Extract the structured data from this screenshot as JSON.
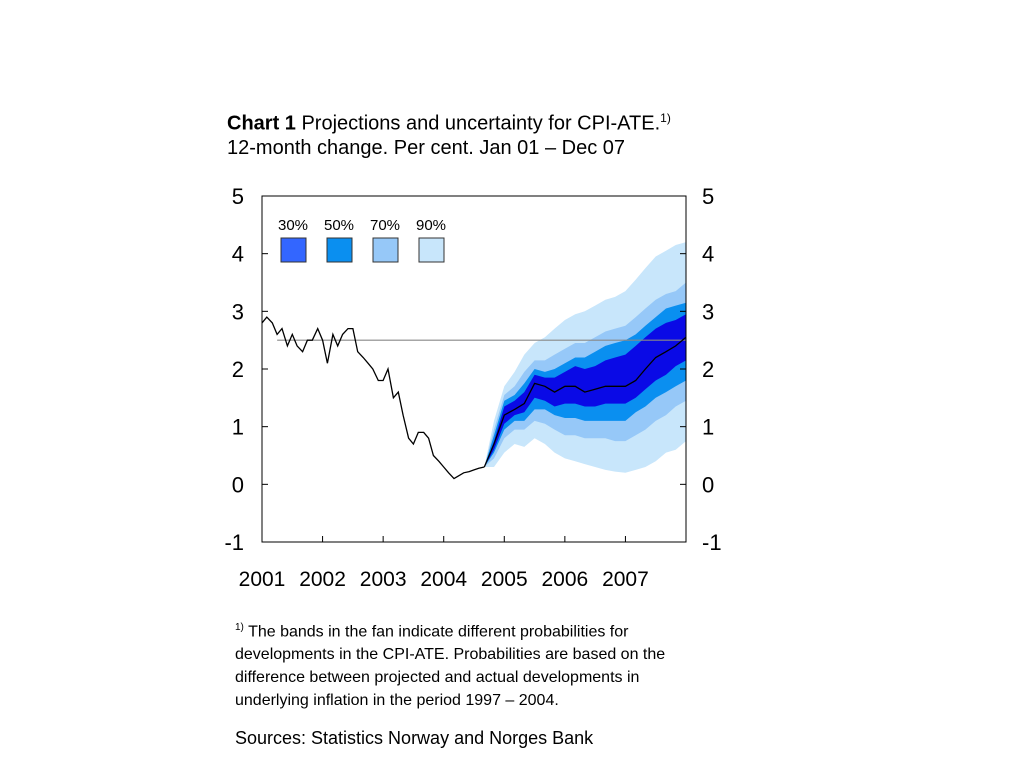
{
  "title": {
    "bold": "Chart 1",
    "text": "Projections and uncertainty for CPI-ATE.",
    "sup": "1)",
    "subtitle": "12-month change. Per cent. Jan 01 – Dec 07"
  },
  "footnote": {
    "sup": "1)",
    "text": "The bands in the fan indicate different probabilities for developments in the CPI-ATE. Probabilities are based on the difference between projected and actual developments in underlying inflation in the period 1997 – 2004."
  },
  "sources": "Sources: Statistics Norway and Norges Bank",
  "colors": {
    "band90": "#c8e6fb",
    "band70": "#96c8f8",
    "band50": "#0a8ff0",
    "band30": "#0a0ae6",
    "legend30": "#3366ff",
    "line": "#000000",
    "target_line": "#888888"
  },
  "chart_data": {
    "type": "area",
    "title": "Projections and uncertainty for CPI-ATE.",
    "subtitle": "12-month change. Per cent. Jan 01 – Dec 07",
    "x_categories": [
      "2001",
      "2002",
      "2003",
      "2004",
      "2005",
      "2006",
      "2007"
    ],
    "xlim": [
      2001.0,
      2008.0
    ],
    "ylim": [
      -1,
      5
    ],
    "yticks": [
      -1,
      0,
      1,
      2,
      3,
      4,
      5
    ],
    "yticks_right": [
      -1,
      0,
      1,
      2,
      3,
      4,
      5
    ],
    "legend": [
      "30%",
      "50%",
      "70%",
      "90%"
    ],
    "legend_position": "top-left",
    "reference_line": {
      "from": 2001.25,
      "to": 2008.0,
      "y": 2.5
    },
    "historical": {
      "x": [
        2001.0,
        2001.08,
        2001.17,
        2001.25,
        2001.33,
        2001.42,
        2001.5,
        2001.58,
        2001.67,
        2001.75,
        2001.83,
        2001.92,
        2002.0,
        2002.08,
        2002.17,
        2002.25,
        2002.33,
        2002.42,
        2002.5,
        2002.58,
        2002.67,
        2002.75,
        2002.83,
        2002.92,
        2003.0,
        2003.08,
        2003.17,
        2003.25,
        2003.33,
        2003.42,
        2003.5,
        2003.58,
        2003.67,
        2003.75,
        2003.83,
        2003.92,
        2004.0,
        2004.08,
        2004.17,
        2004.25,
        2004.33,
        2004.42,
        2004.5,
        2004.58,
        2004.67
      ],
      "y": [
        2.8,
        2.9,
        2.8,
        2.6,
        2.7,
        2.4,
        2.6,
        2.4,
        2.3,
        2.5,
        2.5,
        2.7,
        2.5,
        2.1,
        2.6,
        2.4,
        2.6,
        2.7,
        2.7,
        2.3,
        2.2,
        2.1,
        2.0,
        1.8,
        1.8,
        2.0,
        1.5,
        1.6,
        1.2,
        0.8,
        0.7,
        0.9,
        0.9,
        0.8,
        0.5,
        0.4,
        0.3,
        0.2,
        0.1,
        0.15,
        0.2,
        0.22,
        0.25,
        0.28,
        0.3
      ]
    },
    "projection": {
      "x": [
        2004.67,
        2004.83,
        2005.0,
        2005.17,
        2005.33,
        2005.5,
        2005.67,
        2005.83,
        2006.0,
        2006.17,
        2006.33,
        2006.5,
        2006.67,
        2006.83,
        2007.0,
        2007.17,
        2007.33,
        2007.5,
        2007.67,
        2007.83,
        2008.0
      ],
      "median": [
        0.3,
        0.7,
        1.2,
        1.3,
        1.4,
        1.75,
        1.7,
        1.6,
        1.7,
        1.7,
        1.6,
        1.65,
        1.7,
        1.7,
        1.7,
        1.8,
        2.0,
        2.2,
        2.3,
        2.4,
        2.55
      ],
      "bands": [
        {
          "name": "90%",
          "lower": [
            0.3,
            0.3,
            0.55,
            0.7,
            0.65,
            0.8,
            0.7,
            0.55,
            0.45,
            0.4,
            0.35,
            0.3,
            0.25,
            0.22,
            0.2,
            0.25,
            0.3,
            0.4,
            0.55,
            0.6,
            0.75
          ],
          "upper": [
            0.3,
            1.1,
            1.7,
            1.95,
            2.25,
            2.45,
            2.55,
            2.7,
            2.85,
            2.95,
            3.0,
            3.1,
            3.2,
            3.25,
            3.35,
            3.55,
            3.75,
            3.95,
            4.05,
            4.15,
            4.2
          ]
        },
        {
          "name": "70%",
          "lower": [
            0.3,
            0.45,
            0.8,
            0.95,
            0.95,
            1.1,
            1.05,
            0.95,
            0.85,
            0.85,
            0.8,
            0.8,
            0.8,
            0.75,
            0.75,
            0.85,
            0.95,
            1.1,
            1.2,
            1.35,
            1.45
          ],
          "upper": [
            0.3,
            0.95,
            1.55,
            1.7,
            1.95,
            2.15,
            2.15,
            2.25,
            2.35,
            2.45,
            2.45,
            2.55,
            2.65,
            2.7,
            2.75,
            2.9,
            3.05,
            3.2,
            3.3,
            3.35,
            3.5
          ]
        },
        {
          "name": "50%",
          "lower": [
            0.3,
            0.55,
            0.95,
            1.1,
            1.1,
            1.3,
            1.3,
            1.2,
            1.15,
            1.15,
            1.1,
            1.1,
            1.1,
            1.1,
            1.1,
            1.25,
            1.35,
            1.5,
            1.6,
            1.7,
            1.8
          ],
          "upper": [
            0.3,
            0.85,
            1.45,
            1.55,
            1.75,
            2.0,
            1.95,
            2.0,
            2.1,
            2.2,
            2.2,
            2.3,
            2.4,
            2.45,
            2.5,
            2.6,
            2.75,
            2.9,
            3.05,
            3.1,
            3.15
          ]
        },
        {
          "name": "30%",
          "lower": [
            0.3,
            0.6,
            1.05,
            1.2,
            1.25,
            1.5,
            1.45,
            1.35,
            1.4,
            1.4,
            1.35,
            1.35,
            1.4,
            1.4,
            1.4,
            1.5,
            1.65,
            1.8,
            1.9,
            2.05,
            2.15
          ],
          "upper": [
            0.3,
            0.75,
            1.35,
            1.45,
            1.6,
            1.9,
            1.85,
            1.85,
            1.95,
            2.05,
            2.0,
            2.05,
            2.15,
            2.2,
            2.25,
            2.4,
            2.55,
            2.7,
            2.8,
            2.85,
            2.95
          ]
        }
      ]
    }
  }
}
